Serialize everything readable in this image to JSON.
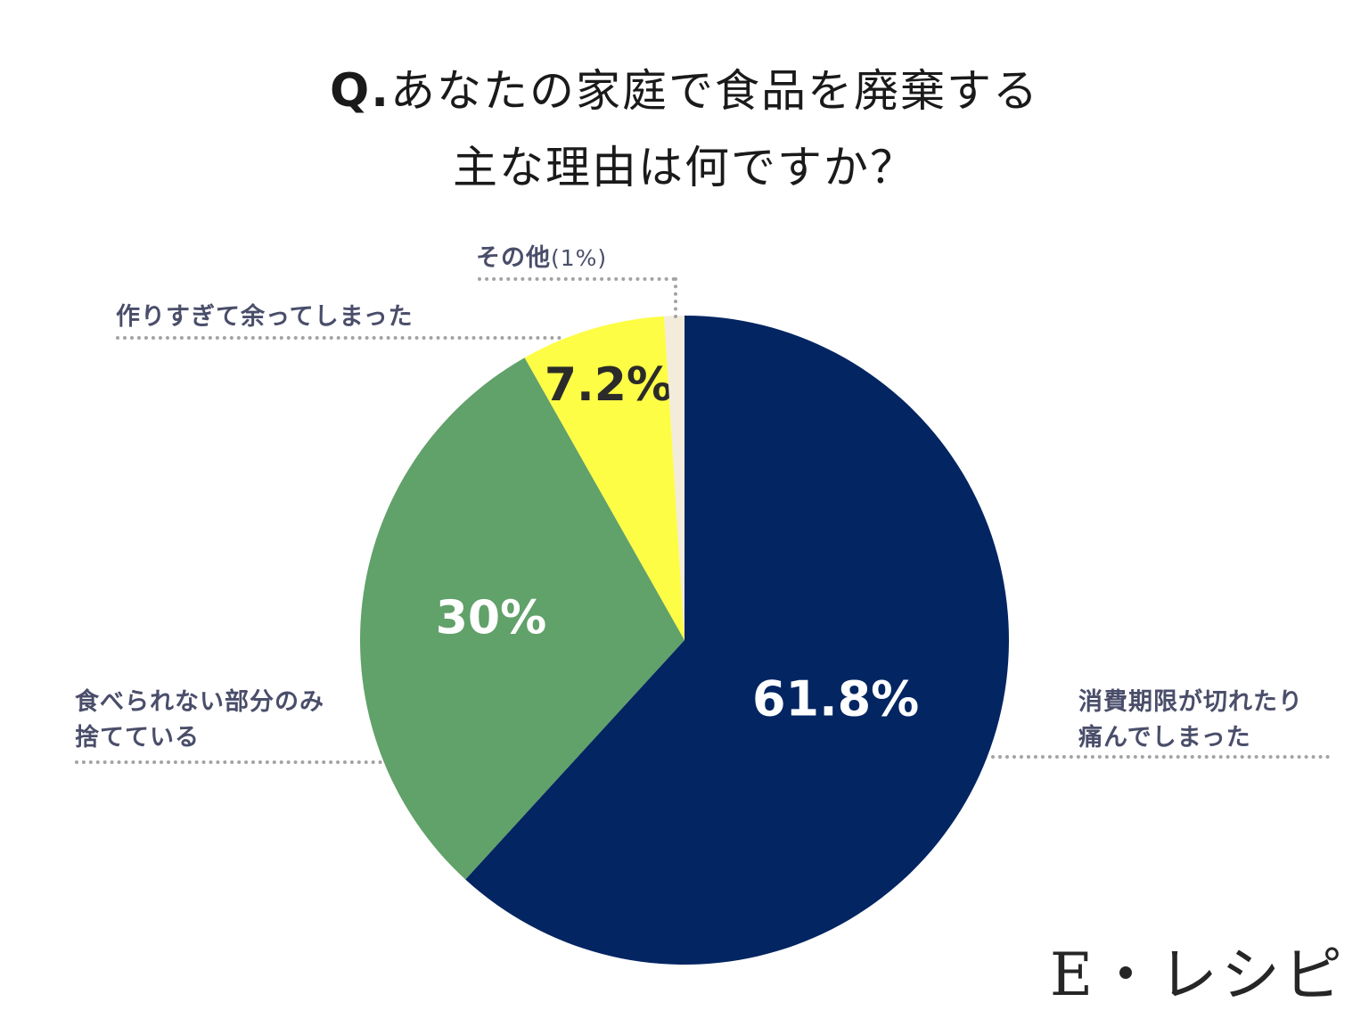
{
  "title": {
    "prefix": "Q.",
    "line1": "あなたの家庭で食品を廃棄する",
    "line2": "主な理由は何ですか？"
  },
  "chart_data": {
    "type": "pie",
    "slices": [
      {
        "label": "消費期限が切れたり痛んでしまった",
        "label_lines": [
          "消費期限が切れたり",
          "痛んでしまった"
        ],
        "value": 61.8,
        "display": "61.8%",
        "color": "#032562",
        "text_color": "#ffffff"
      },
      {
        "label": "食べられない部分のみ捨てている",
        "label_lines": [
          "食べられない部分のみ",
          "捨てている"
        ],
        "value": 30,
        "display": "30%",
        "color": "#61a16a",
        "text_color": "#ffffff"
      },
      {
        "label": "作りすぎて余ってしまった",
        "label_lines": [
          "作りすぎて余ってしまった"
        ],
        "value": 7.2,
        "display": "7.2%",
        "color": "#fdfd45",
        "text_color": "#2b2b2b"
      },
      {
        "label": "その他",
        "label_lines": [
          "その他"
        ],
        "value": 1,
        "display": "(1%)",
        "color": "#f3ecdb",
        "text_color": "#4a4e6a"
      }
    ]
  },
  "brand": "E・レシピ"
}
